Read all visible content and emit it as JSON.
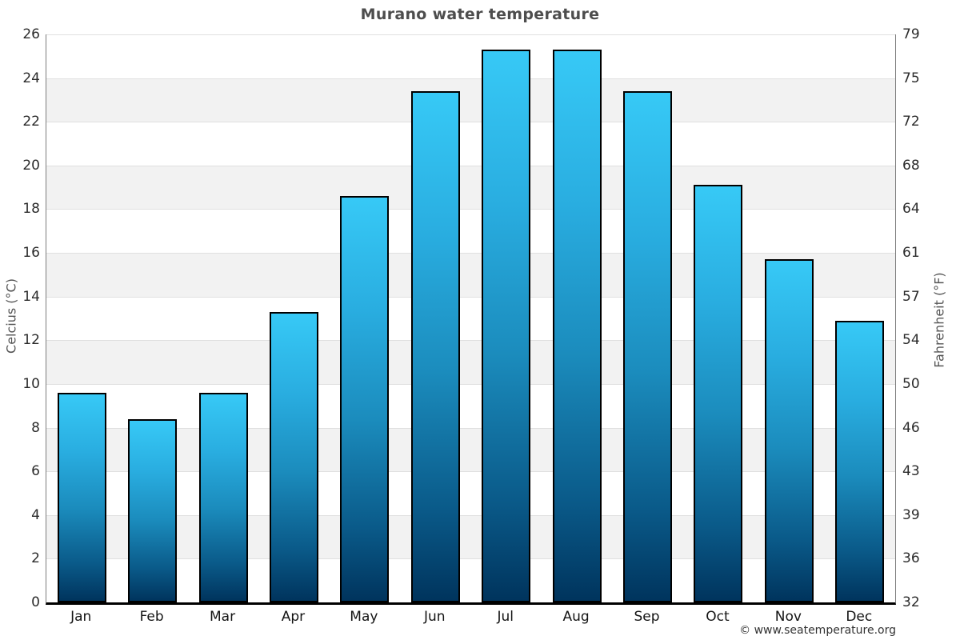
{
  "title": "Murano water temperature",
  "footer": {
    "copyright": "© www.seatemperature.org"
  },
  "chart_data": {
    "type": "bar",
    "title": "Murano water temperature",
    "categories": [
      "Jan",
      "Feb",
      "Mar",
      "Apr",
      "May",
      "Jun",
      "Jul",
      "Aug",
      "Sep",
      "Oct",
      "Nov",
      "Dec"
    ],
    "values": [
      9.6,
      8.4,
      9.6,
      13.3,
      18.6,
      23.4,
      25.3,
      25.3,
      23.4,
      19.1,
      15.7,
      12.9
    ],
    "unit": "°C",
    "ylabel_left": "Celcius (°C)",
    "ylabel_right": "Fahrenheit (°F)",
    "ylim": [
      0,
      26
    ],
    "yticks_celsius": [
      26,
      24,
      22,
      20,
      18,
      16,
      14,
      12,
      10,
      8,
      6,
      4,
      2,
      0
    ],
    "yticks_fahrenheit": [
      79,
      75,
      72,
      68,
      64,
      61,
      57,
      54,
      50,
      46,
      43,
      39,
      36,
      32
    ],
    "grid": "alternating-horizontal-bands",
    "legend": "none",
    "colors": {
      "bar_gradient_top": "#37c9f6",
      "bar_gradient_mid": "#1b8cbd",
      "bar_gradient_bottom": "#00345d",
      "bar_border": "#000000",
      "band_gray": "#f2f2f2",
      "gridline": "#e0e0e0",
      "axis_line": "#7d7d7d",
      "bottom_axis": "#000000",
      "title_text": "#4d4d4d",
      "tick_text": "#2b2b2b",
      "axis_title_text": "#555555"
    }
  }
}
